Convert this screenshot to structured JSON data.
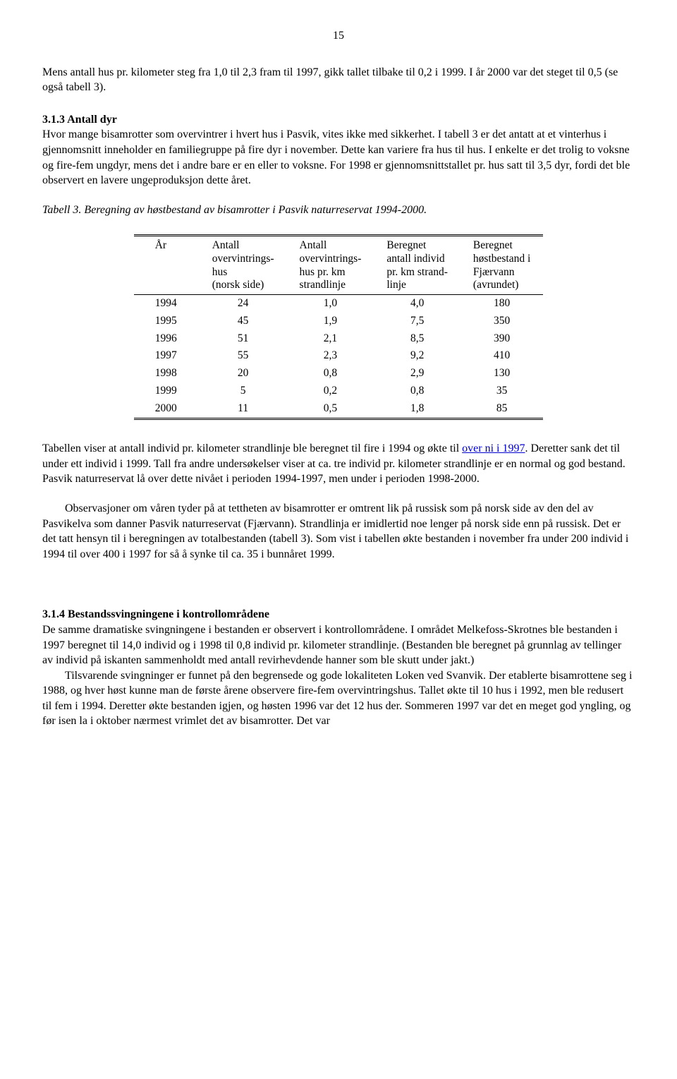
{
  "page_number": "15",
  "p1": "Mens antall hus pr. kilometer steg fra 1,0 til 2,3 fram til 1997, gikk tallet tilbake til 0,2 i 1999. I år 2000 var det steget til 0,5 (se også tabell 3).",
  "h1": "3.1.3 Antall dyr",
  "p2": "Hvor mange bisamrotter som overvintrer i hvert hus i Pasvik, vites ikke med sikkerhet. I tabell 3 er det antatt at et vinterhus i gjennomsnitt inneholder en familiegruppe på fire dyr i november. Dette kan variere fra hus til hus. I enkelte er det trolig to voksne og fire-fem ungdyr, mens det i andre bare er en eller to voksne. For 1998 er gjennomsnittstallet pr. hus satt til 3,5 dyr, fordi det ble observert en lavere ungeproduksjon dette året.",
  "table_caption": "Tabell 3. Beregning av høstbestand av bisamrotter i Pasvik naturreservat 1994-2000.",
  "table": {
    "columns": [
      [
        "År"
      ],
      [
        "Antall",
        "overvintrings-",
        "hus",
        "(norsk side)"
      ],
      [
        "Antall",
        "overvintrings-",
        "hus pr. km",
        "strandlinje"
      ],
      [
        "Beregnet",
        "antall individ",
        "pr. km strand-",
        "linje"
      ],
      [
        "Beregnet",
        "høstbestand i",
        "Fjærvann",
        "(avrundet)"
      ]
    ],
    "rows": [
      [
        "1994",
        "24",
        "1,0",
        "4,0",
        "180"
      ],
      [
        "1995",
        "45",
        "1,9",
        "7,5",
        "350"
      ],
      [
        "1996",
        "51",
        "2,1",
        "8,5",
        "390"
      ],
      [
        "1997",
        "55",
        "2,3",
        "9,2",
        "410"
      ],
      [
        "1998",
        "20",
        "0,8",
        "2,9",
        "130"
      ],
      [
        "1999",
        "5",
        "0,2",
        "0,8",
        "35"
      ],
      [
        "2000",
        "11",
        "0,5",
        "1,8",
        "85"
      ]
    ]
  },
  "p3a": "Tabellen viser at antall individ pr. kilometer strandlinje ble beregnet til fire i 1994 og økte til ",
  "p3link": "over ni i 1997",
  "p3b": ". Deretter sank det til under ett individ i 1999. Tall fra andre undersøkelser viser at ca. tre individ pr. kilometer strandlinje er en normal og god bestand. Pasvik naturreservat lå over dette nivået i perioden 1994-1997, men under i perioden 1998-2000.",
  "p4": "Observasjoner om våren tyder på at tettheten av bisamrotter er omtrent lik på russisk som på norsk side av den del av Pasvikelva som danner Pasvik naturreservat (Fjærvann). Strandlinja er imidlertid noe lenger på norsk side enn på russisk. Det er det tatt hensyn til i beregningen av totalbestanden (tabell 3). Som vist i tabellen økte bestanden i november fra under 200 individ i 1994 til over 400 i 1997 for så å synke til ca. 35 i bunnåret 1999.",
  "h2": "3.1.4 Bestandssvingningene i kontrollområdene",
  "p5": "De samme dramatiske svingningene i bestanden er observert i kontrollområdene. I området Melkefoss-Skrotnes ble bestanden i 1997 beregnet til 14,0 individ og i 1998 til 0,8 individ pr. kilometer strandlinje. (Bestanden ble beregnet på grunnlag av tellinger av individ på iskanten sammenholdt med antall revirhevdende hanner som ble skutt under jakt.)",
  "p6": "Tilsvarende svingninger er funnet på den begrensede og gode lokaliteten Loken ved Svanvik. Der etablerte bisamrottene seg i 1988, og hver høst kunne man de første årene observere fire-fem overvintringshus. Tallet økte til 10 hus i 1992, men ble redusert til fem i 1994. Deretter økte bestanden igjen, og høsten 1996 var det 12 hus der. Sommeren 1997 var det en meget god yngling, og før isen la i oktober nærmest vrimlet det av bisamrotter. Det var"
}
